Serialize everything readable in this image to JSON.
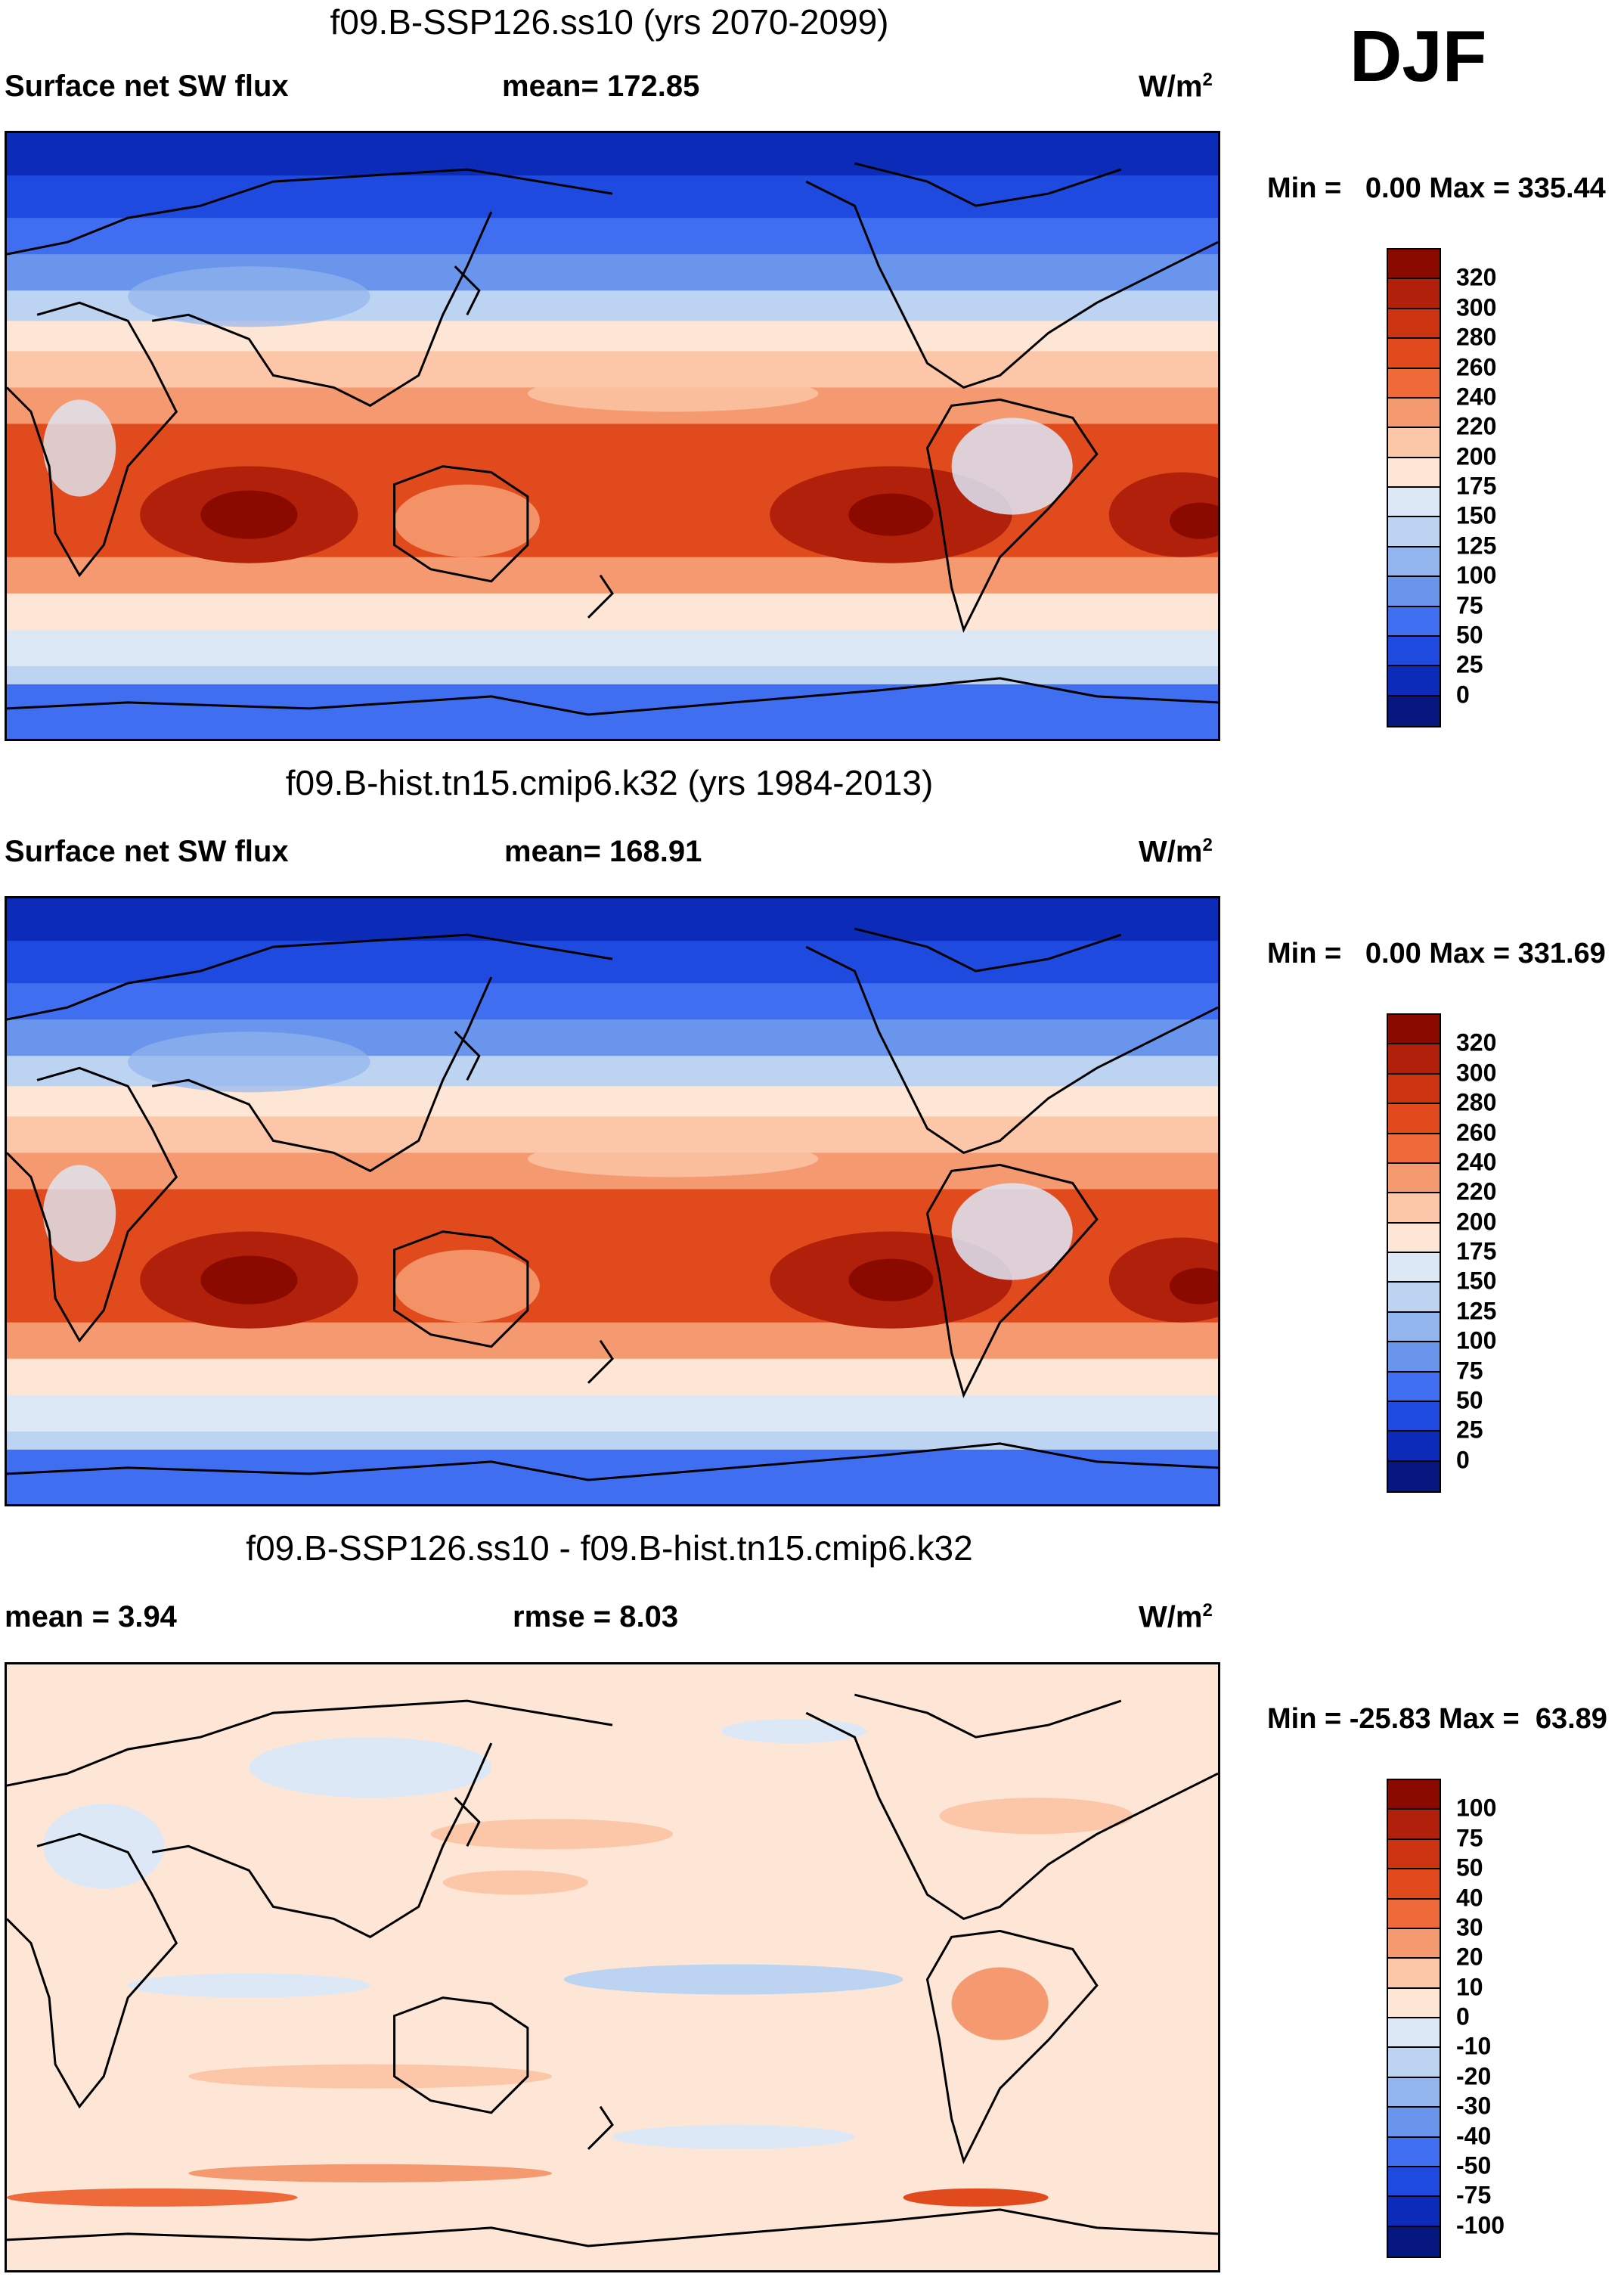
{
  "season": "DJF",
  "units_base": "W/m",
  "units_exp": "2",
  "panels": [
    {
      "title": "f09.B-SSP126.ss10 (yrs 2070-2099)",
      "left_label": "Surface net SW flux",
      "mid_label": "mean= 172.85",
      "minmax": "Min =   0.00 Max = 335.44"
    },
    {
      "title": "f09.B-hist.tn15.cmip6.k32 (yrs 1984-2013)",
      "left_label": "Surface net SW flux",
      "mid_label": "mean= 168.91",
      "minmax": "Min =   0.00 Max = 331.69"
    },
    {
      "title": "f09.B-SSP126.ss10 - f09.B-hist.tn15.cmip6.k32",
      "left_label": "mean =   3.94",
      "mid_label": "rmse =   8.03",
      "minmax": "Min = -25.83 Max =  63.89"
    }
  ],
  "chart_data": [
    {
      "type": "heatmap",
      "title": "f09.B-SSP126.ss10 (yrs 2070-2099)",
      "variable": "Surface net SW flux",
      "mean": 172.85,
      "min": 0.0,
      "max": 335.44,
      "colorbar_levels": [
        320,
        300,
        280,
        260,
        240,
        220,
        200,
        175,
        150,
        125,
        100,
        75,
        50,
        25,
        0
      ],
      "colorbar_colors": [
        "#8b0a00",
        "#b0200a",
        "#cc3311",
        "#e04a1c",
        "#ef6a3a",
        "#f59a70",
        "#fbc7a8",
        "#fde6d6",
        "#dde8f7",
        "#bcd3f2",
        "#92b5ee",
        "#6a95ec",
        "#3f6ff0",
        "#1e4ae0",
        "#0c2bb8",
        "#071780"
      ]
    },
    {
      "type": "heatmap",
      "title": "f09.B-hist.tn15.cmip6.k32 (yrs 1984-2013)",
      "variable": "Surface net SW flux",
      "mean": 168.91,
      "min": 0.0,
      "max": 331.69,
      "colorbar_levels": [
        320,
        300,
        280,
        260,
        240,
        220,
        200,
        175,
        150,
        125,
        100,
        75,
        50,
        25,
        0
      ],
      "colorbar_colors": [
        "#8b0a00",
        "#b0200a",
        "#cc3311",
        "#e04a1c",
        "#ef6a3a",
        "#f59a70",
        "#fbc7a8",
        "#fde6d6",
        "#dde8f7",
        "#bcd3f2",
        "#92b5ee",
        "#6a95ec",
        "#3f6ff0",
        "#1e4ae0",
        "#0c2bb8",
        "#071780"
      ]
    },
    {
      "type": "heatmap",
      "title": "f09.B-SSP126.ss10 - f09.B-hist.tn15.cmip6.k32",
      "variable": "difference",
      "mean": 3.94,
      "rmse": 8.03,
      "min": -25.83,
      "max": 63.89,
      "colorbar_levels": [
        100,
        75,
        50,
        40,
        30,
        20,
        10,
        0,
        -10,
        -20,
        -30,
        -40,
        -50,
        -75,
        -100
      ],
      "colorbar_colors": [
        "#8b0a00",
        "#b0200a",
        "#cc3311",
        "#e04a1c",
        "#ef6a3a",
        "#f59a70",
        "#fbc7a8",
        "#fde6d6",
        "#dde8f7",
        "#bcd3f2",
        "#92b5ee",
        "#6a95ec",
        "#3f6ff0",
        "#1e4ae0",
        "#0c2bb8",
        "#071780"
      ]
    }
  ]
}
